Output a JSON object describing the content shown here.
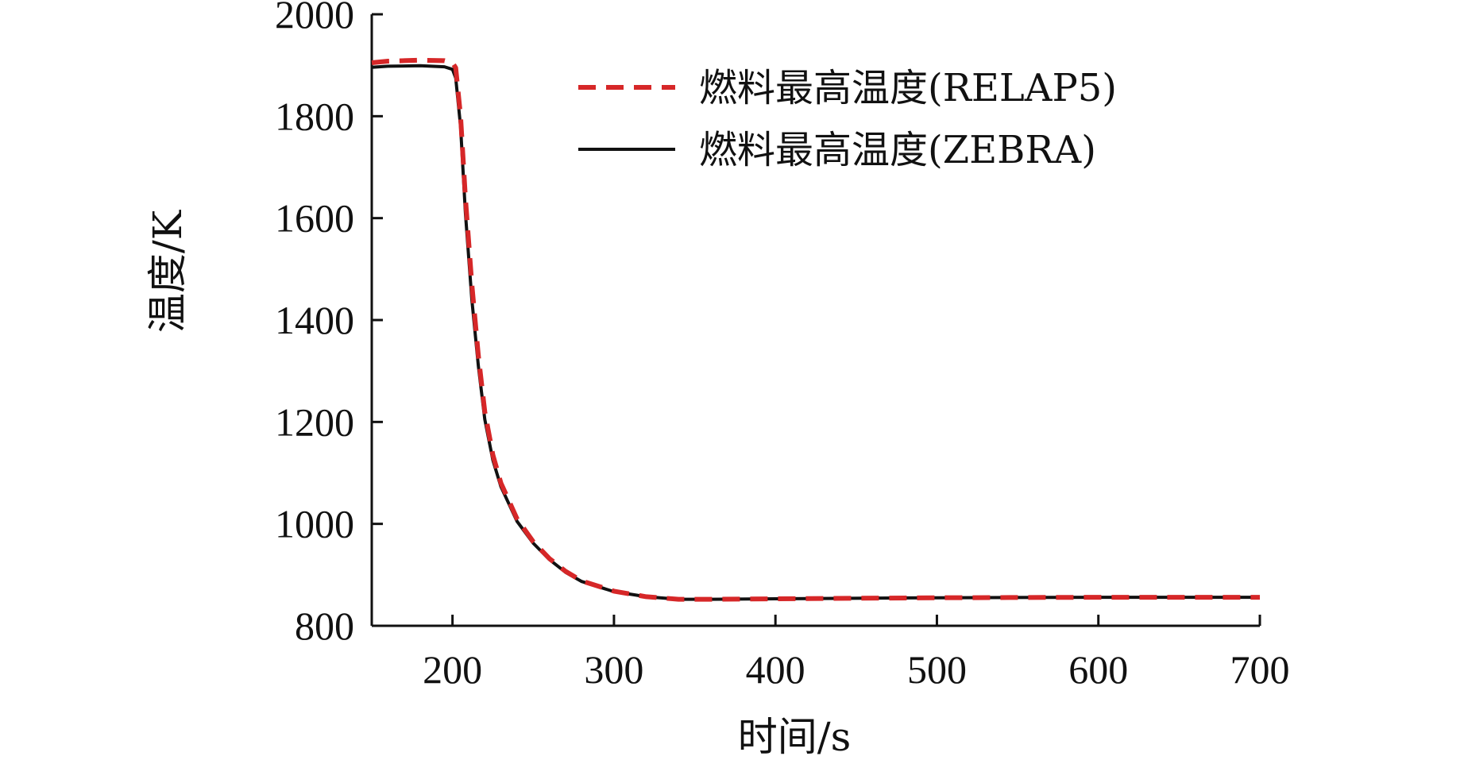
{
  "chart_data": {
    "type": "line",
    "xlabel": "时间/s",
    "ylabel": "温度/K",
    "xlim": [
      150,
      700
    ],
    "ylim": [
      800,
      2000
    ],
    "xticks": [
      200,
      300,
      400,
      500,
      600,
      700
    ],
    "yticks": [
      800,
      1000,
      1200,
      1400,
      1600,
      1800,
      2000
    ],
    "grid": false,
    "legend_position": "top-right",
    "series": [
      {
        "name": "燃料最高温度(RELAP5)",
        "color": "#d62728",
        "style": "dashed",
        "x": [
          150,
          160,
          180,
          195,
          200,
          202,
          205,
          208,
          212,
          216,
          220,
          225,
          230,
          240,
          250,
          260,
          270,
          280,
          300,
          320,
          340,
          360,
          400,
          500,
          600,
          700
        ],
        "y": [
          1905,
          1908,
          1910,
          1909,
          1905,
          1895,
          1800,
          1640,
          1470,
          1330,
          1220,
          1135,
          1080,
          1010,
          965,
          932,
          907,
          888,
          868,
          857,
          852,
          852,
          853,
          855,
          856,
          856
        ]
      },
      {
        "name": "燃料最高温度(ZEBRA)",
        "color": "#111111",
        "style": "solid",
        "x": [
          150,
          160,
          180,
          195,
          200,
          202,
          205,
          208,
          212,
          216,
          220,
          225,
          230,
          240,
          250,
          260,
          270,
          280,
          300,
          320,
          340,
          360,
          400,
          500,
          600,
          700
        ],
        "y": [
          1896,
          1898,
          1899,
          1897,
          1892,
          1875,
          1780,
          1610,
          1440,
          1310,
          1205,
          1125,
          1073,
          1005,
          962,
          930,
          905,
          887,
          867,
          857,
          852,
          852,
          853,
          855,
          856,
          856
        ]
      }
    ]
  }
}
